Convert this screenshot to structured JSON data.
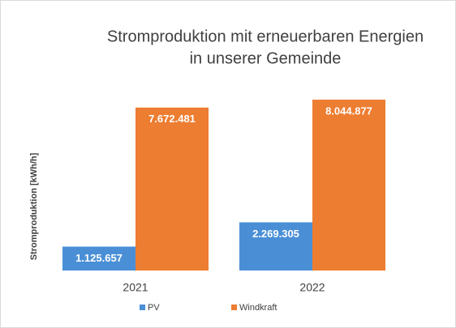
{
  "chart_data": {
    "type": "bar",
    "title": [
      "Stromproduktion mit erneuerbaren Energien",
      "in unserer Gemeinde"
    ],
    "y_label": "Stromproduktion [kWh/h]",
    "categories": [
      "2021",
      "2022"
    ],
    "series": [
      {
        "name": "PV",
        "color": "#4a8fd6",
        "values": [
          1125657,
          2269305
        ],
        "value_labels": [
          "1.125.657",
          "2.269.305"
        ]
      },
      {
        "name": "Windkraft",
        "color": "#ed7d31",
        "values": [
          7672481,
          8044877
        ],
        "value_labels": [
          "7.672.481",
          "8.044.877"
        ]
      }
    ],
    "ylim": [
      0,
      9000000
    ],
    "legend": "bottom"
  }
}
